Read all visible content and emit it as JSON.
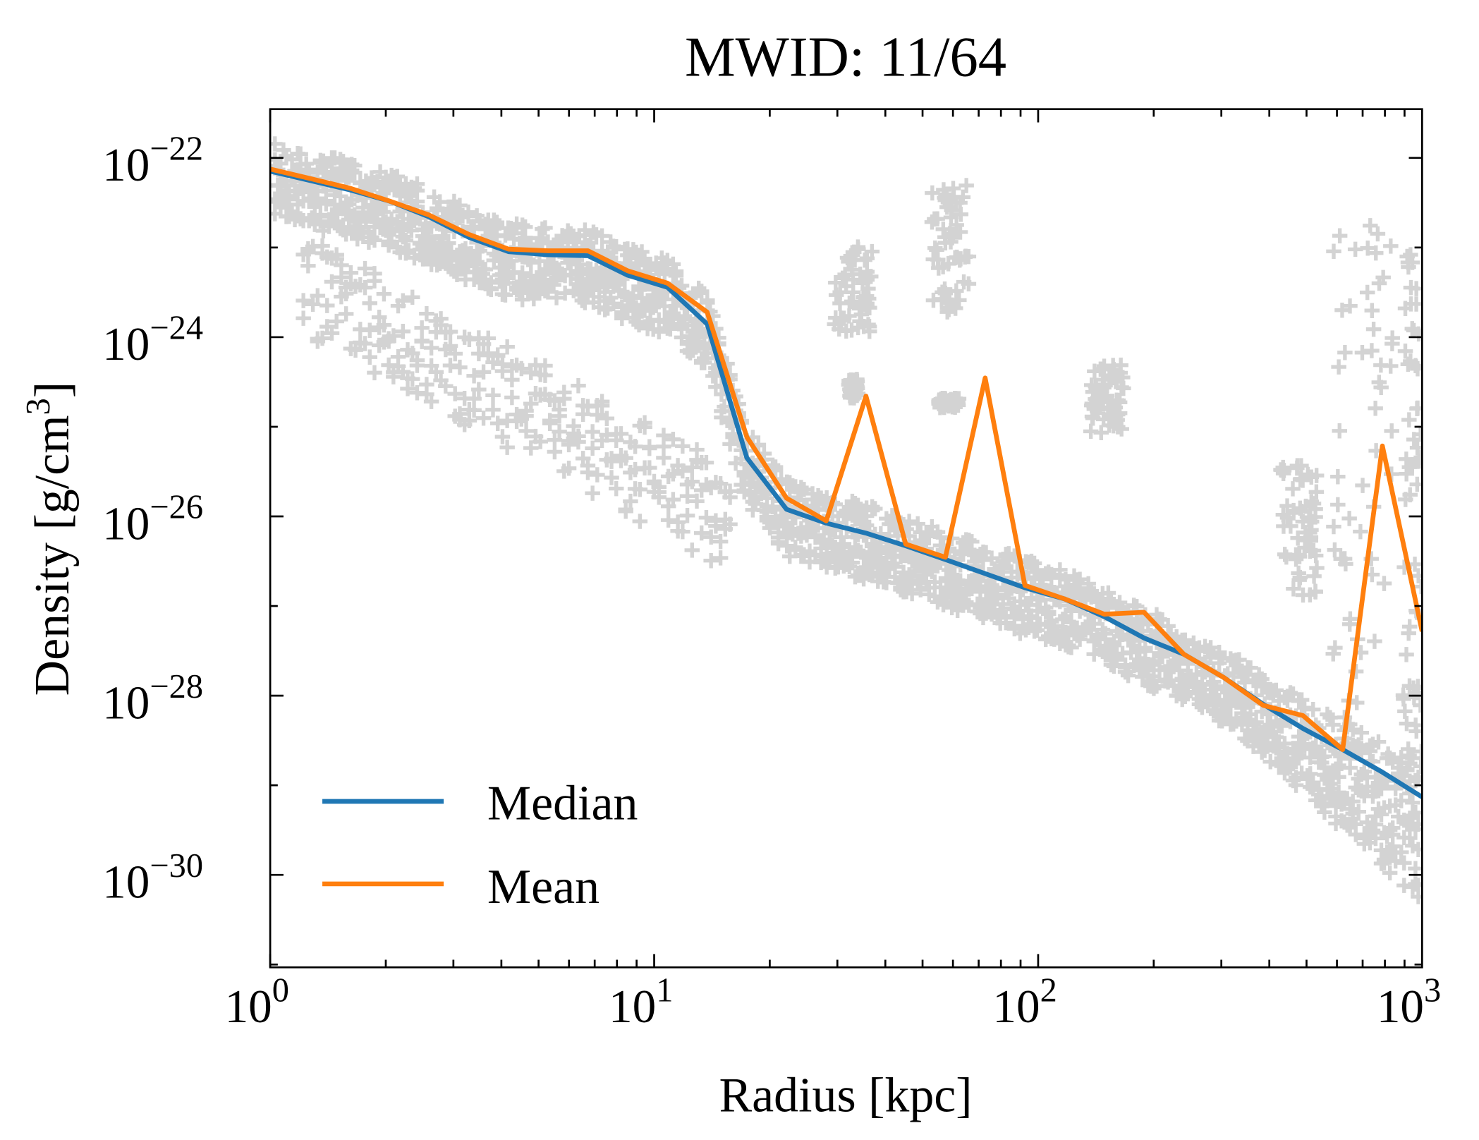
{
  "chart_data": {
    "type": "line",
    "title": "MWID: 11/64",
    "xlabel": "Radius [kpc]",
    "ylabel": "Density [g/cm³]",
    "ylabel_parts": {
      "main": "Density [g/cm",
      "sup": "3",
      "end": "]"
    },
    "xscale": "log",
    "yscale": "log",
    "xlim": [
      1,
      1000
    ],
    "ylim": [
      3.5e-22,
      9.3e-32
    ],
    "x_ticks": [
      {
        "value": 1,
        "base": "10",
        "exp": "0"
      },
      {
        "value": 10,
        "base": "10",
        "exp": "1"
      },
      {
        "value": 100,
        "base": "10",
        "exp": "2"
      },
      {
        "value": 1000,
        "base": "10",
        "exp": "3"
      }
    ],
    "y_ticks": [
      {
        "value": 1e-22,
        "base": "10",
        "exp": "−22"
      },
      {
        "value": 1e-24,
        "base": "10",
        "exp": "−24"
      },
      {
        "value": 1e-26,
        "base": "10",
        "exp": "−26"
      },
      {
        "value": 1e-28,
        "base": "10",
        "exp": "−28"
      },
      {
        "value": 1e-30,
        "base": "10",
        "exp": "−30"
      }
    ],
    "grid": false,
    "legend_placement": "lower-left",
    "x": [
      1.0,
      1.269,
      1.611,
      2.043,
      2.593,
      3.29,
      4.175,
      5.298,
      6.723,
      8.532,
      10.83,
      13.74,
      17.43,
      22.12,
      28.07,
      35.62,
      45.2,
      57.36,
      72.79,
      92.37,
      117.2,
      148.7,
      188.7,
      239.5,
      303.9,
      385.7,
      489.4,
      621.0,
      788.0,
      1000.0
    ],
    "series": [
      {
        "name": "Median",
        "color": "#1f77b4",
        "values": [
          7.1e-23,
          5.6e-23,
          4.4e-23,
          3.3e-23,
          2.2e-23,
          1.3e-23,
          9e-24,
          8.3e-24,
          8.1e-24,
          4.9e-24,
          3.6e-24,
          1.4e-24,
          4.5e-26,
          1.2e-26,
          8.4e-27,
          6.5e-27,
          4.7e-27,
          3.3e-27,
          2.3e-27,
          1.6e-27,
          1.2e-27,
          7.6e-28,
          4.4e-28,
          2.9e-28,
          1.6e-28,
          8e-29,
          4.3e-29,
          2.5e-29,
          1.4e-29,
          7.4e-30
        ]
      },
      {
        "name": "Mean",
        "color": "#ff7f0e",
        "values": [
          7.5e-23,
          5.9e-23,
          4.6e-23,
          3.3e-23,
          2.3e-23,
          1.4e-23,
          9.6e-24,
          9.2e-24,
          9.2e-24,
          5.5e-24,
          4e-24,
          1.9e-24,
          7.7e-26,
          1.6e-26,
          8.9e-27,
          2.2e-25,
          4.9e-27,
          3.5e-27,
          3.5e-25,
          1.7e-27,
          1.2e-27,
          8.1e-28,
          8.5e-28,
          2.9e-28,
          1.6e-28,
          7.8e-29,
          6e-29,
          2.5e-29,
          6.1e-26,
          5.2e-28
        ]
      }
    ],
    "scatter": {
      "marker": "+",
      "color": "#d3d3d3"
    }
  }
}
